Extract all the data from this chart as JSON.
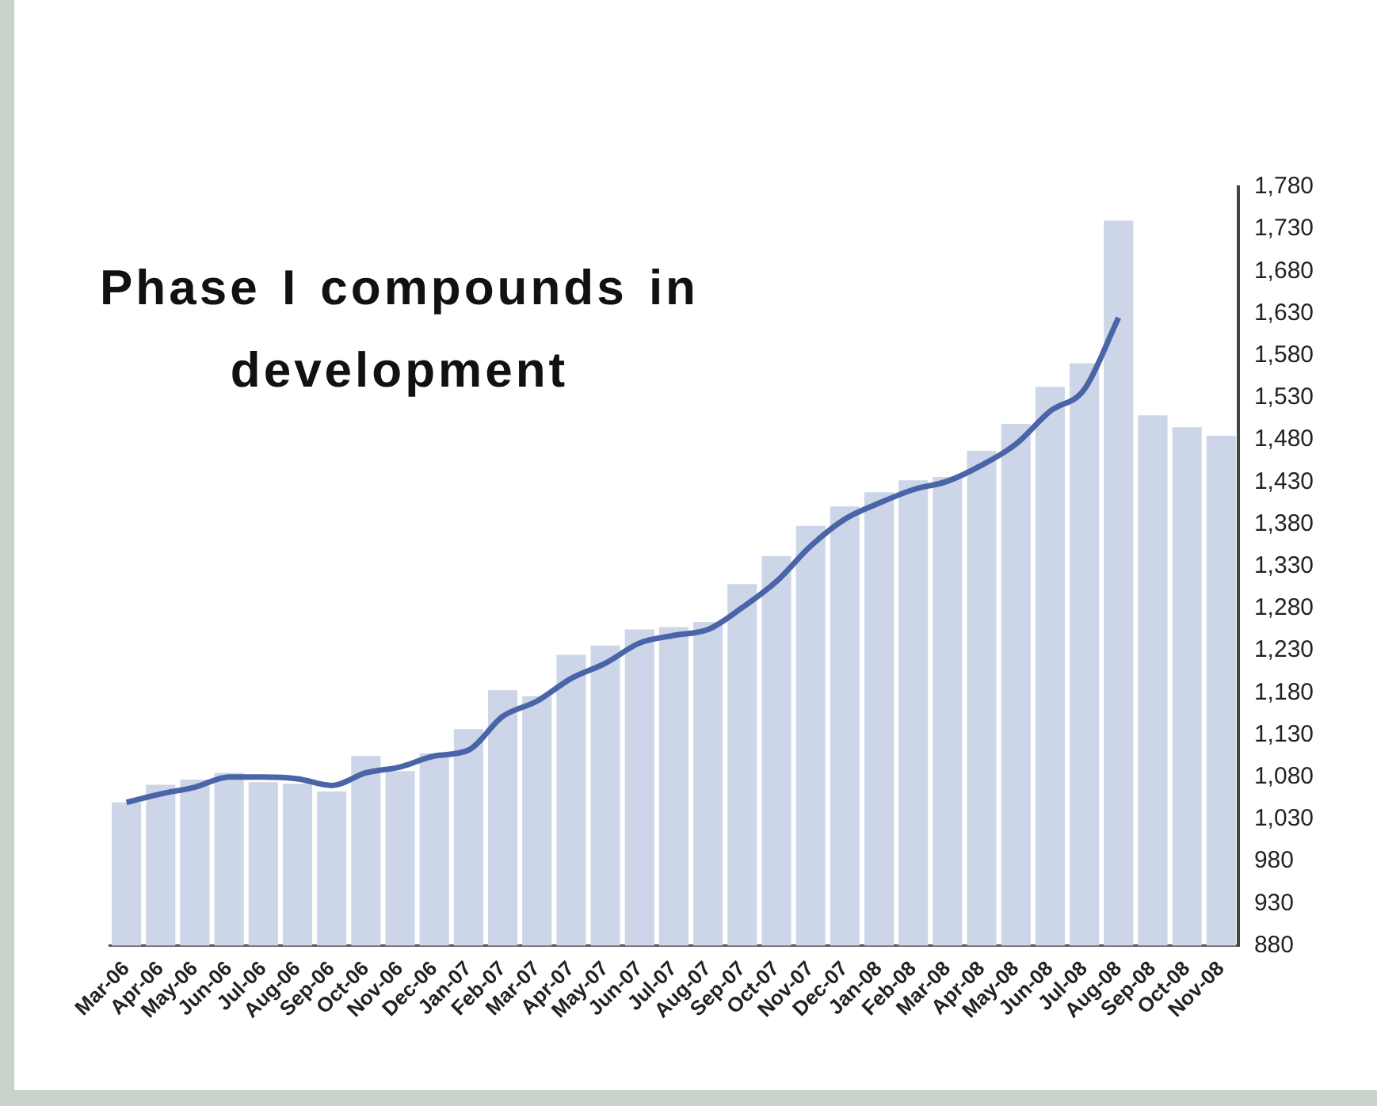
{
  "chart_data": {
    "type": "bar",
    "title": "Phase I compounds in development",
    "categories": [
      "Mar-06",
      "Apr-06",
      "May-06",
      "Jun-06",
      "Jul-06",
      "Aug-06",
      "Sep-06",
      "Oct-06",
      "Nov-06",
      "Dec-06",
      "Jan-07",
      "Feb-07",
      "Mar-07",
      "Apr-07",
      "May-07",
      "Jun-07",
      "Jul-07",
      "Aug-07",
      "Sep-07",
      "Oct-07",
      "Nov-07",
      "Dec-07",
      "Jan-08",
      "Feb-08",
      "Mar-08",
      "Apr-08",
      "May-08",
      "Jun-08",
      "Jul-08",
      "Aug-08",
      "Sep-08",
      "Oct-08",
      "Nov-08"
    ],
    "series": [
      {
        "color": "#cdd5e8",
        "values": [
          1050,
          1071,
          1077,
          1085,
          1074,
          1072,
          1063,
          1105,
          1087,
          1108,
          1137,
          1183,
          1176,
          1225,
          1236,
          1255,
          1258,
          1264,
          1309,
          1342,
          1378,
          1401,
          1418,
          1432,
          1436,
          1467,
          1499,
          1543,
          1571,
          1740,
          1509,
          1495,
          1485
        ]
      },
      {
        "type": "line",
        "color": "#4a64a8",
        "values": [
          1050,
          1060,
          1068,
          1080,
          1080,
          1078,
          1070,
          1085,
          1092,
          1105,
          1112,
          1152,
          1170,
          1197,
          1215,
          1239,
          1248,
          1255,
          1281,
          1312,
          1354,
          1386,
          1405,
          1421,
          1431,
          1450,
          1475,
          1514,
          1540,
          1625,
          null,
          null,
          null
        ]
      }
    ],
    "ylim": [
      880,
      1780
    ],
    "yticks": [
      {
        "value": 880,
        "label": "880"
      },
      {
        "value": 930,
        "label": "930"
      },
      {
        "value": 980,
        "label": "980"
      },
      {
        "value": 1030,
        "label": "1,030"
      },
      {
        "value": 1080,
        "label": "1,080"
      },
      {
        "value": 1130,
        "label": "1,130"
      },
      {
        "value": 1180,
        "label": "1,180"
      },
      {
        "value": 1230,
        "label": "1,230"
      },
      {
        "value": 1280,
        "label": "1,280"
      },
      {
        "value": 1330,
        "label": "1,330"
      },
      {
        "value": 1380,
        "label": "1,380"
      },
      {
        "value": 1430,
        "label": "1,430"
      },
      {
        "value": 1480,
        "label": "1,480"
      },
      {
        "value": 1530,
        "label": "1,530"
      },
      {
        "value": 1580,
        "label": "1,580"
      },
      {
        "value": 1630,
        "label": "1,630"
      },
      {
        "value": 1680,
        "label": "1,680"
      },
      {
        "value": 1730,
        "label": "1,730"
      },
      {
        "value": 1780,
        "label": "1,780"
      }
    ],
    "grid": false,
    "legend": false,
    "marker": "none",
    "line_style": "solid"
  }
}
